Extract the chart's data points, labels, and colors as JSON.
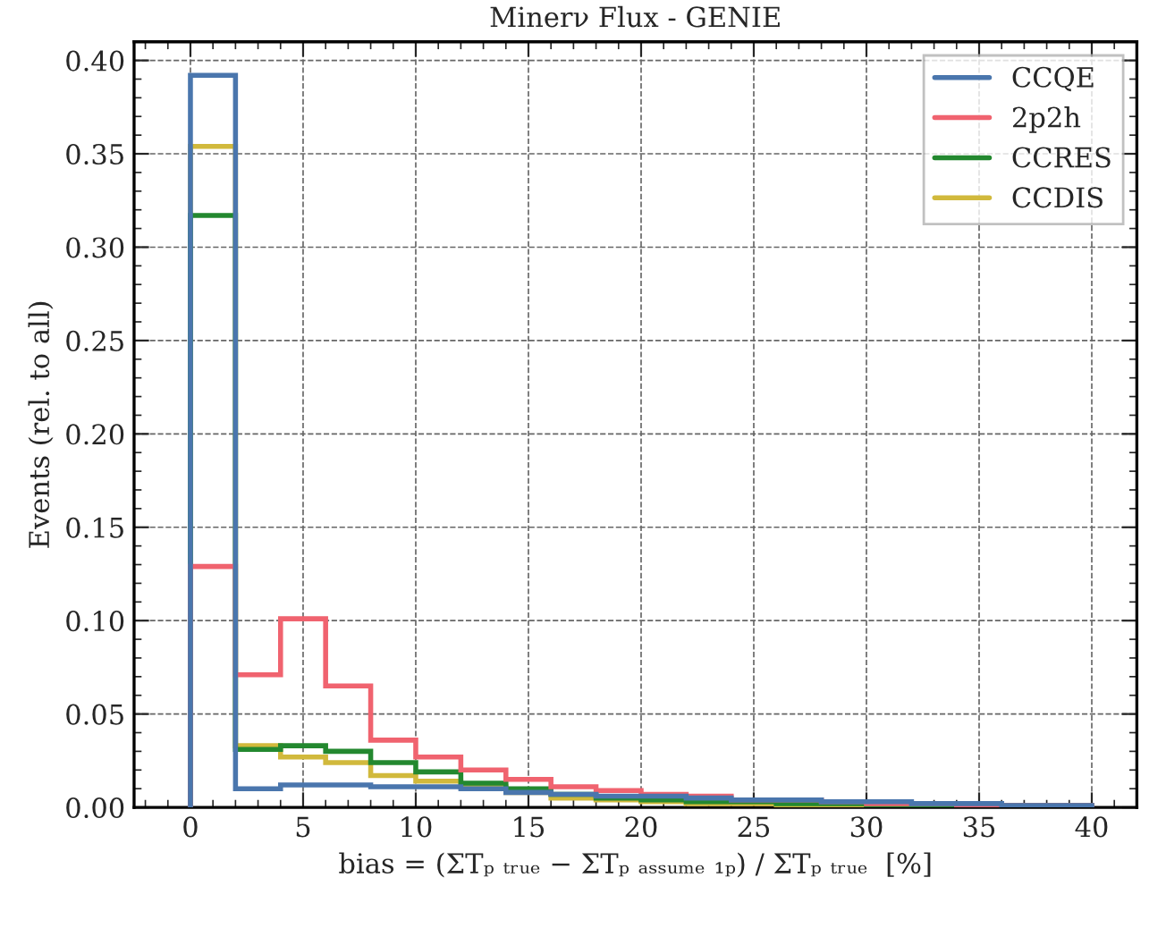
{
  "chart_data": {
    "type": "histogram",
    "title": "Minerν Flux - GENIE",
    "xlabel": "bias = (ΣTₚ ₜᵣᵤₑ − ΣTₚ ₐₛₛᵤₘₑ ₁ₚ) / ΣTₚ ₜᵣᵤₑ  [%]",
    "ylabel": "Events (rel. to all)",
    "bins": [
      0,
      2,
      4,
      6,
      8,
      10,
      12,
      14,
      16,
      18,
      20,
      22,
      24,
      26,
      28,
      30,
      32,
      34,
      36,
      38,
      40
    ],
    "series": [
      {
        "name": "CCQE",
        "color": "#4a76ad",
        "values": [
          0.392,
          0.01,
          0.012,
          0.012,
          0.011,
          0.011,
          0.01,
          0.008,
          0.007,
          0.006,
          0.006,
          0.005,
          0.004,
          0.004,
          0.003,
          0.003,
          0.002,
          0.002,
          0.001,
          0.001
        ]
      },
      {
        "name": "2p2h",
        "color": "#f0636f",
        "values": [
          0.129,
          0.071,
          0.101,
          0.065,
          0.036,
          0.027,
          0.02,
          0.015,
          0.011,
          0.009,
          0.007,
          0.006,
          0.004,
          0.004,
          0.003,
          0.002,
          0.002,
          0.001,
          0.001,
          0.001
        ]
      },
      {
        "name": "CCRES",
        "color": "#23882f",
        "values": [
          0.317,
          0.031,
          0.033,
          0.03,
          0.024,
          0.019,
          0.013,
          0.01,
          0.007,
          0.005,
          0.004,
          0.003,
          0.003,
          0.002,
          0.002,
          0.001,
          0.001,
          0.001,
          0.001,
          0.001
        ]
      },
      {
        "name": "CCDIS",
        "color": "#d1b93c",
        "values": [
          0.354,
          0.033,
          0.027,
          0.024,
          0.017,
          0.014,
          0.011,
          0.008,
          0.005,
          0.004,
          0.003,
          0.002,
          0.002,
          0.001,
          0.001,
          0.001,
          0.001,
          0.001,
          0.0,
          0.0
        ]
      }
    ],
    "xlim": [
      -2.5,
      42
    ],
    "ylim": [
      0,
      0.41
    ],
    "xticks": [
      0,
      5,
      10,
      15,
      20,
      25,
      30,
      35,
      40
    ],
    "yticks": [
      {
        "value": 0,
        "label": "0.00"
      },
      {
        "value": 0.05,
        "label": "0.05"
      },
      {
        "value": 0.1,
        "label": "0.10"
      },
      {
        "value": 0.15,
        "label": "0.15"
      },
      {
        "value": 0.2,
        "label": "0.20"
      },
      {
        "value": 0.25,
        "label": "0.25"
      },
      {
        "value": 0.3,
        "label": "0.30"
      },
      {
        "value": 0.35,
        "label": "0.35"
      },
      {
        "value": 0.4,
        "label": "0.40"
      }
    ],
    "grid": true,
    "legend": "top right",
    "line_style": "solid"
  }
}
